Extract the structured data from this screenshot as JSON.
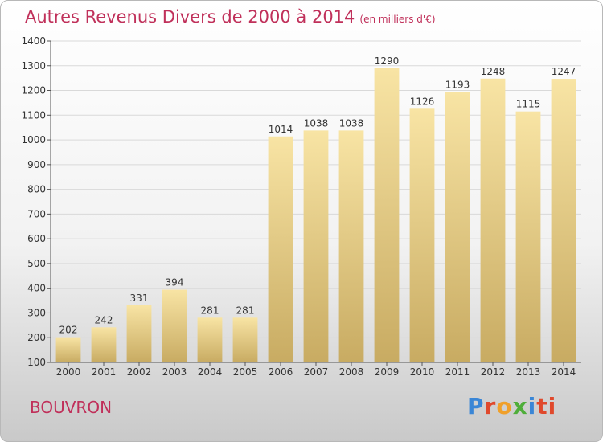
{
  "header": {
    "title": "Autres Revenus Divers de 2000 à 2014",
    "subtitle": "(en milliers d'€)"
  },
  "footer": {
    "city": "BOUVRON",
    "logo_letters": [
      "P",
      "r",
      "o",
      "x",
      "i",
      "ti"
    ]
  },
  "colors": {
    "title": "#c0305a",
    "bar_light": "#f8e4a4",
    "bar_dark": "#c8ab62",
    "grid": "#d9d9d9"
  },
  "chart_data": {
    "type": "bar",
    "title": "Autres Revenus Divers de 2000 à 2014",
    "subtitle": "(en milliers d'€)",
    "categories": [
      "2000",
      "2001",
      "2002",
      "2003",
      "2004",
      "2005",
      "2006",
      "2007",
      "2008",
      "2009",
      "2010",
      "2011",
      "2012",
      "2013",
      "2014"
    ],
    "values": [
      202,
      242,
      331,
      394,
      281,
      281,
      1014,
      1038,
      1038,
      1290,
      1126,
      1193,
      1248,
      1115,
      1247
    ],
    "ylim": [
      100,
      1400
    ],
    "yticks": [
      100,
      200,
      300,
      400,
      500,
      600,
      700,
      800,
      900,
      1000,
      1100,
      1200,
      1300,
      1400
    ],
    "grid": true
  }
}
